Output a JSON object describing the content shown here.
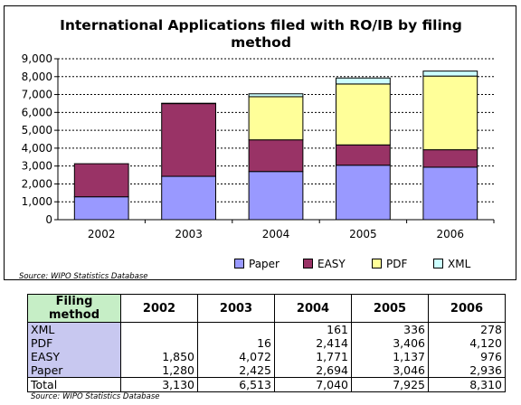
{
  "chart_data": {
    "type": "bar",
    "stacked": true,
    "title": "International Applications filed with RO/IB by filing method",
    "title_lines": [
      "International Applications filed with RO/IB by filing",
      "method"
    ],
    "categories": [
      "2002",
      "2003",
      "2004",
      "2005",
      "2006"
    ],
    "series": [
      {
        "name": "Paper",
        "color": "#9999ff",
        "values": [
          1280,
          2425,
          2694,
          3046,
          2936
        ]
      },
      {
        "name": "EASY",
        "color": "#993366",
        "values": [
          1850,
          4072,
          1771,
          1137,
          976
        ]
      },
      {
        "name": "PDF",
        "color": "#ffff99",
        "values": [
          0,
          16,
          2414,
          3406,
          4120
        ]
      },
      {
        "name": "XML",
        "color": "#ccffff",
        "values": [
          0,
          0,
          161,
          336,
          278
        ]
      }
    ],
    "ylim": [
      0,
      9000
    ],
    "yticks": [
      "0",
      "1,000",
      "2,000",
      "3,000",
      "4,000",
      "5,000",
      "6,000",
      "7,000",
      "8,000",
      "9,000"
    ],
    "grid": true,
    "legend_position": "bottom"
  },
  "chart_source": "Source: WIPO Statistics Database",
  "table": {
    "headers": [
      "Filing method",
      "2002",
      "2003",
      "2004",
      "2005",
      "2006"
    ],
    "rows": [
      {
        "label": "XML",
        "values": [
          "",
          "",
          "161",
          "336",
          "278"
        ]
      },
      {
        "label": "PDF",
        "values": [
          "",
          "16",
          "2,414",
          "3,406",
          "4,120"
        ]
      },
      {
        "label": "EASY",
        "values": [
          "1,850",
          "4,072",
          "1,771",
          "1,137",
          "976"
        ]
      },
      {
        "label": "Paper",
        "values": [
          "1,280",
          "2,425",
          "2,694",
          "3,046",
          "2,936"
        ]
      }
    ],
    "total": {
      "label": "Total",
      "values": [
        "3,130",
        "6,513",
        "7,040",
        "7,925",
        "8,310"
      ]
    },
    "source": "Source: WIPO Statistics Database"
  }
}
